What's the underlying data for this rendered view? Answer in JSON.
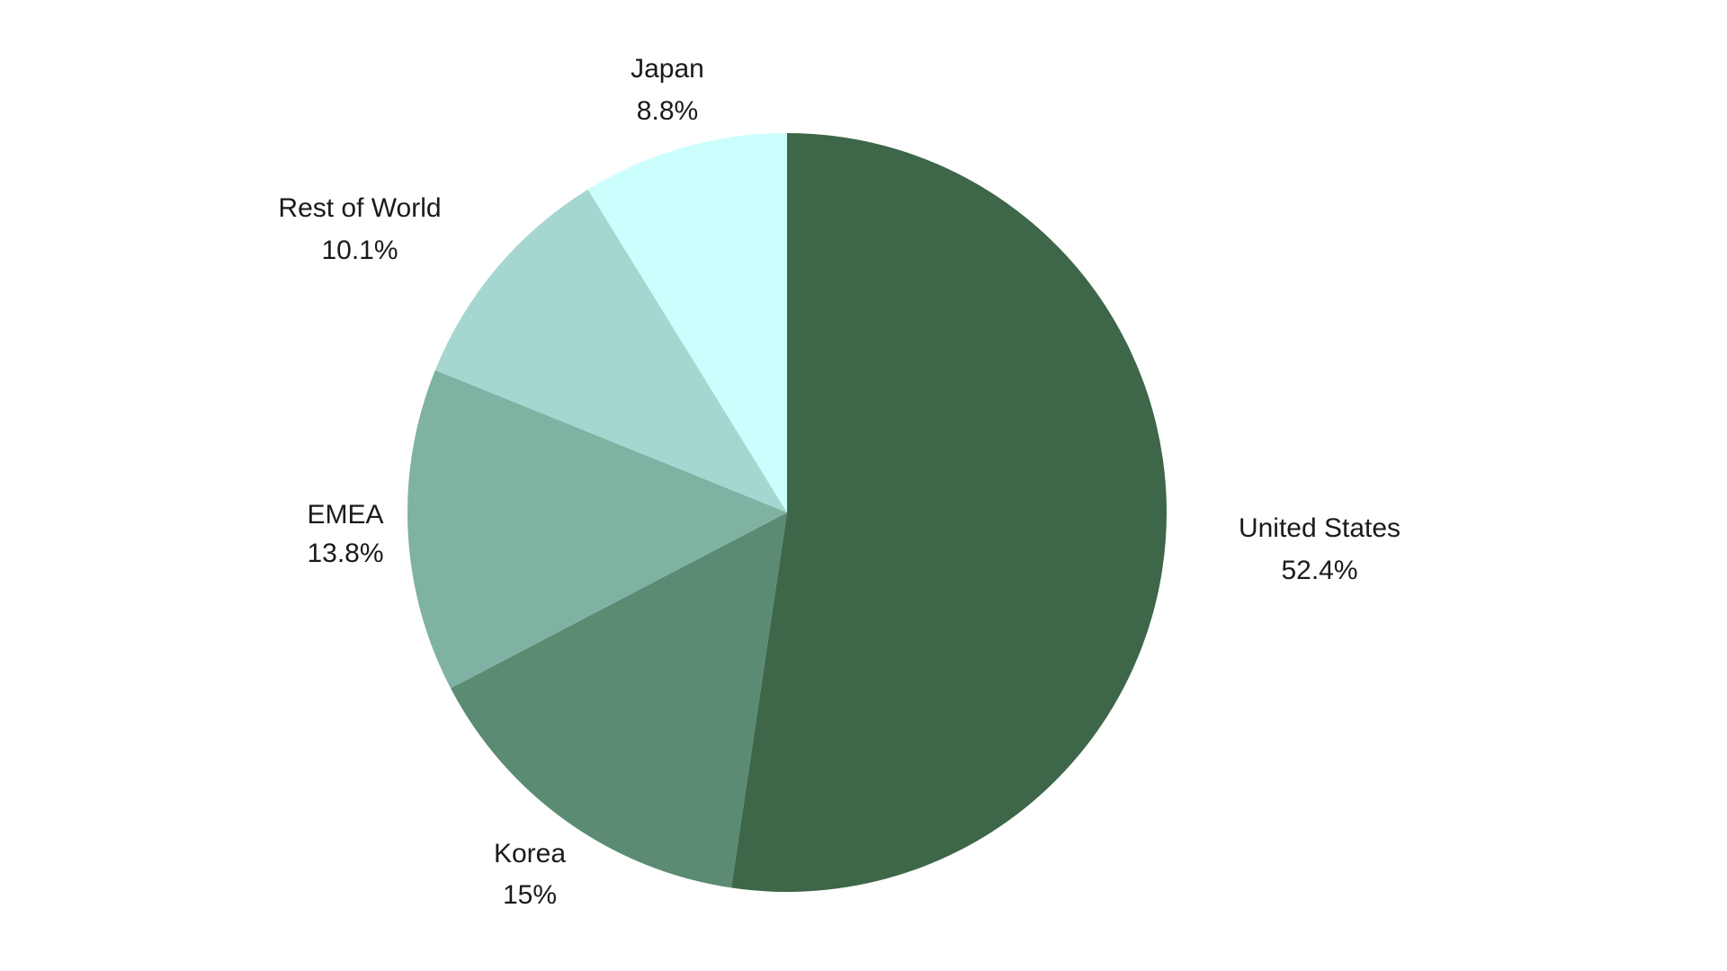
{
  "chart_data": {
    "type": "pie",
    "title": "",
    "start_angle": "12 o'clock",
    "direction": "clockwise",
    "slices": [
      {
        "label": "United States",
        "value": 52.4,
        "value_label": "52.4%",
        "color": "#3d6748"
      },
      {
        "label": "Korea",
        "value": 15,
        "value_label": "15%",
        "color": "#5b8b73"
      },
      {
        "label": "EMEA",
        "value": 13.8,
        "value_label": "13.8%",
        "color": "#7fb2a3"
      },
      {
        "label": "Rest of World",
        "value": 10.1,
        "value_label": "10.1%",
        "color": "#a6d6d0"
      },
      {
        "label": "Japan",
        "value": 8.8,
        "value_label": "8.8%",
        "color": "#cdfefe"
      }
    ]
  }
}
